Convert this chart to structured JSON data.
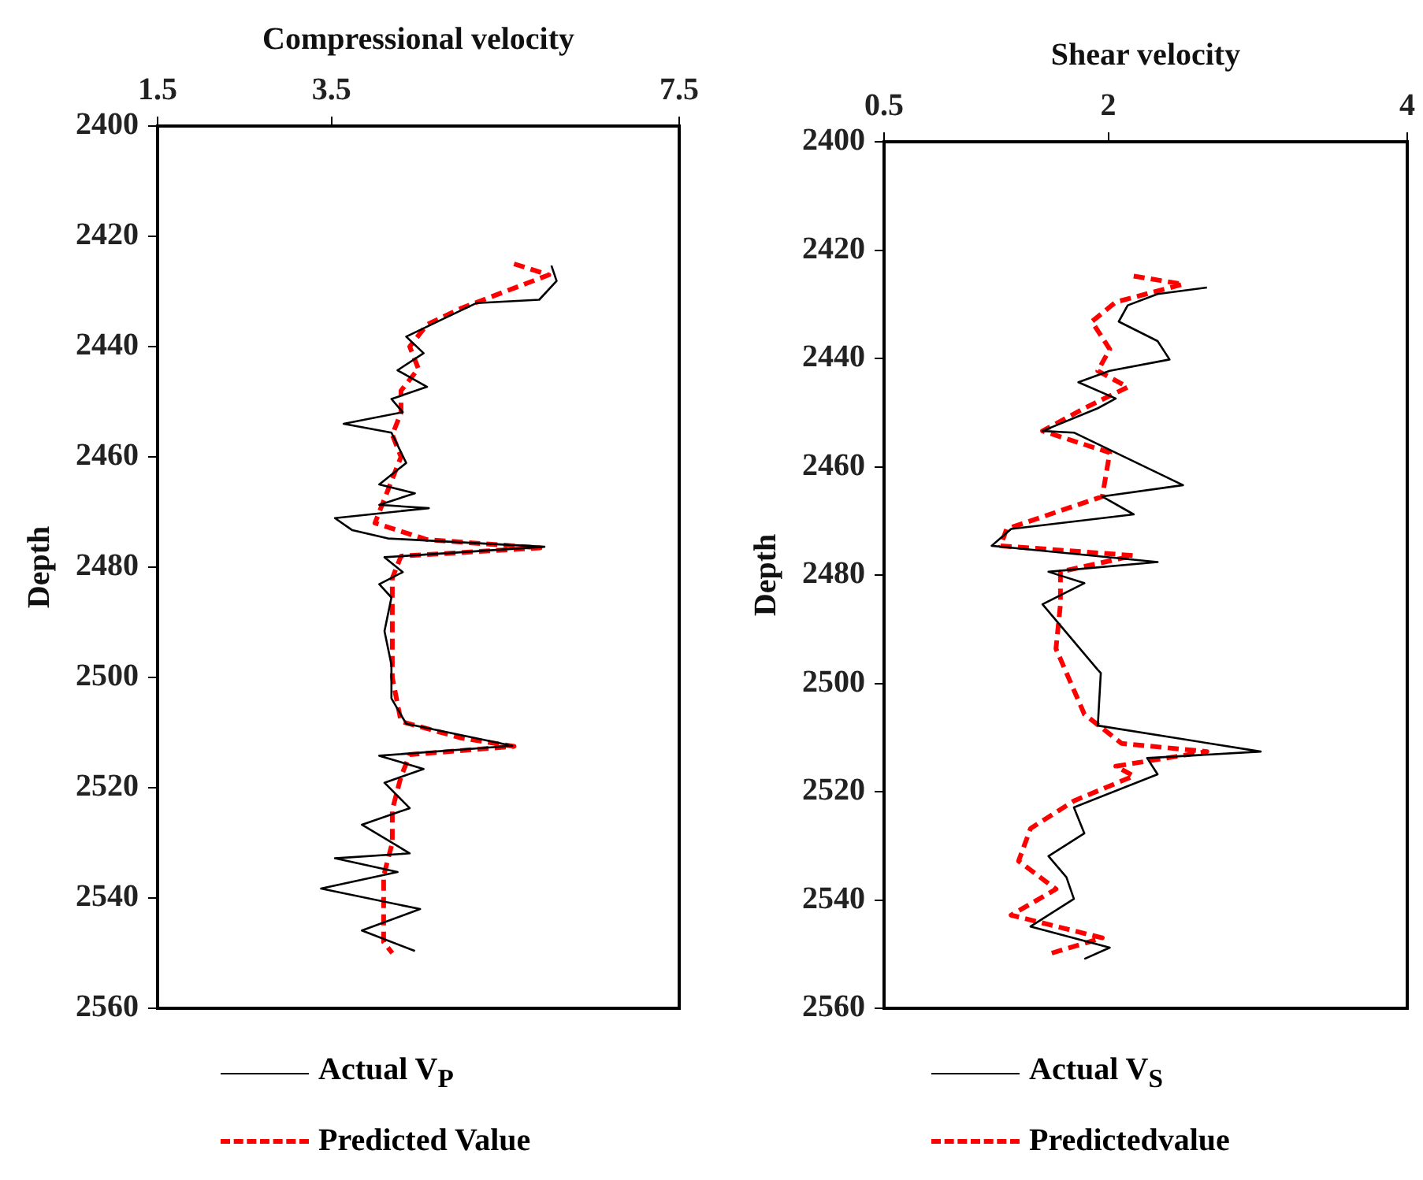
{
  "chart_data": [
    {
      "type": "line",
      "xlabel": "Compressional velocity",
      "ylabel": "Depth",
      "xlim": [
        1.5,
        7.5
      ],
      "xticks": [
        1.5,
        3.5,
        7.5
      ],
      "ylim": [
        2560,
        2400
      ],
      "yticks": [
        2400,
        2420,
        2440,
        2460,
        2480,
        2500,
        2520,
        2540,
        2560
      ],
      "grid": false,
      "legend": "bottom",
      "marker": "none",
      "series": [
        {
          "name": "Actual V$_{P}$",
          "color": "#000000",
          "line_style": "solid",
          "x": [
            6.03,
            6.09,
            5.89,
            5.17,
            4.77,
            4.36,
            4.56,
            4.26,
            4.6,
            4.19,
            4.32,
            3.64,
            4.19,
            4.36,
            4.05,
            4.46,
            4.05,
            4.62,
            3.54,
            3.74,
            4.15,
            5.95,
            4.11,
            4.32,
            4.05,
            4.19,
            4.11,
            4.19,
            4.19,
            4.36,
            5.58,
            4.05,
            4.56,
            4.11,
            4.4,
            3.85,
            4.4,
            3.54,
            4.26,
            3.38,
            4.52,
            3.85,
            4.46
          ],
          "values": [
            2425.3,
            2428.1,
            2431.5,
            2432.1,
            2435.1,
            2438.2,
            2441.2,
            2444.3,
            2447.3,
            2449.5,
            2451.9,
            2454,
            2455.6,
            2461.1,
            2465,
            2466.6,
            2468.7,
            2469.3,
            2471.1,
            2473.3,
            2474.8,
            2476.3,
            2478.2,
            2480.9,
            2483.1,
            2485.5,
            2491.6,
            2497.7,
            2503.8,
            2508.4,
            2512.4,
            2514.2,
            2516.6,
            2519.1,
            2523.7,
            2526.7,
            2531.9,
            2532.8,
            2535.3,
            2538.3,
            2542,
            2545.9,
            2549.6
          ]
        },
        {
          "name": "Predicted Value",
          "color": "#ff0000",
          "line_style": "dashed",
          "x": [
            5.6,
            6,
            5.5,
            5,
            4.6,
            4.4,
            4.5,
            4.3,
            4.3,
            4.2,
            4.3,
            4.2,
            4.1,
            4,
            4.6,
            5.9,
            4.3,
            4.2,
            4.2,
            4.2,
            4.3,
            5,
            5.6,
            4.4,
            4.3,
            4.2,
            4.2,
            4.1,
            4.1,
            4.1,
            4.2
          ],
          "values": [
            2425,
            2427,
            2430,
            2433,
            2436,
            2440,
            2444,
            2448,
            2452,
            2456,
            2460,
            2464,
            2468,
            2472,
            2475,
            2476.5,
            2478,
            2482,
            2490,
            2500,
            2508,
            2511,
            2512.5,
            2514,
            2518,
            2524,
            2530,
            2536,
            2542,
            2548,
            2550
          ]
        }
      ]
    },
    {
      "type": "line",
      "xlabel": "Shear velocity",
      "ylabel": "Depth",
      "xlim": [
        0.5,
        4
      ],
      "xticks": [
        0.5,
        2,
        4
      ],
      "ylim": [
        2560,
        2400
      ],
      "yticks": [
        2400,
        2420,
        2440,
        2460,
        2480,
        2500,
        2520,
        2540,
        2560
      ],
      "grid": false,
      "legend": "bottom",
      "marker": "none",
      "series": [
        {
          "name": "Actual V$_{S}$",
          "color": "#000000",
          "line_style": "solid",
          "x": [
            2.66,
            2.33,
            2.13,
            2.07,
            2.33,
            2.41,
            2.01,
            1.8,
            2.05,
            1.93,
            1.56,
            1.77,
            2.5,
            1.96,
            2.17,
            1.35,
            1.22,
            2.33,
            1.6,
            1.84,
            1.56,
            1.93,
            1.95,
            1.93,
            3.02,
            2.26,
            2.33,
            1.77,
            1.84,
            1.6,
            1.72,
            1.77,
            1.48,
            2.01,
            1.84
          ],
          "values": [
            2426.9,
            2428.1,
            2430.2,
            2433.2,
            2436.8,
            2440.2,
            2442.3,
            2444.4,
            2447.4,
            2449.2,
            2453.4,
            2453.7,
            2463.4,
            2465.5,
            2468.8,
            2471.5,
            2474.6,
            2477.6,
            2479.4,
            2481.5,
            2485.4,
            2497.5,
            2498.1,
            2507.8,
            2512.6,
            2513.8,
            2516.8,
            2522.9,
            2527.7,
            2531.9,
            2535.8,
            2539.8,
            2544.9,
            2548.8,
            2550.9
          ]
        },
        {
          "name": "Predictedvalue",
          "color": "#ff0000",
          "line_style": "dashed",
          "x": [
            2.17,
            2.5,
            2.05,
            1.89,
            2.01,
            1.93,
            2.13,
            1.84,
            1.56,
            2.01,
            1.96,
            1.32,
            1.28,
            2.17,
            1.68,
            1.68,
            1.65,
            1.84,
            2.09,
            2.66,
            2.05,
            2.17,
            1.77,
            1.48,
            1.4,
            1.65,
            1.35,
            1.96,
            1.6
          ],
          "values": [
            2424.8,
            2426.3,
            2429.6,
            2433.2,
            2438.3,
            2442.3,
            2445.3,
            2449.2,
            2453.4,
            2457.4,
            2465.5,
            2471.5,
            2474.6,
            2476.4,
            2479.4,
            2485.4,
            2493.6,
            2505.7,
            2511.1,
            2512.6,
            2515.3,
            2517.1,
            2521.7,
            2526.8,
            2532.8,
            2538,
            2542.8,
            2547,
            2550
          ]
        }
      ]
    }
  ]
}
